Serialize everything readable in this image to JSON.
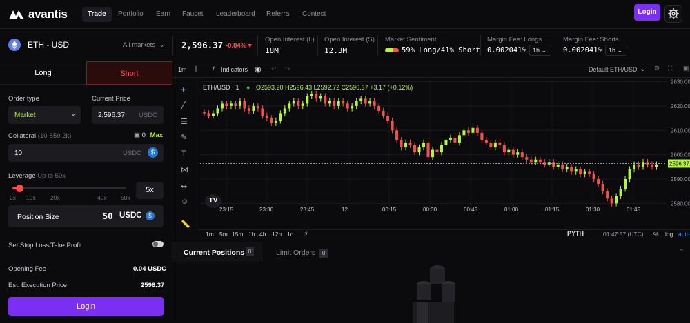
{
  "brand": {
    "name": "avantis"
  },
  "nav": {
    "items": [
      "Trade",
      "Portfolio",
      "Earn",
      "Faucet",
      "Leaderboard",
      "Referral",
      "Contest"
    ],
    "active": "Trade",
    "login_label": "Login"
  },
  "market": {
    "pair": "ETH - USD",
    "all_markets": "All markets",
    "price": "2,596.37",
    "change": "-0.84%",
    "open_interest_long_label": "Open Interest (L)",
    "open_interest_long": "18M",
    "open_interest_short_label": "Open Interest (S)",
    "open_interest_short": "12.3M",
    "sentiment_label": "Market Sentiment",
    "sentiment_value": "59% Long/41% Short",
    "sentiment_long_fraction": 0.59,
    "margin_long_label": "Margin Fee: Longs",
    "margin_long": "0.002041%",
    "margin_long_period": "1h",
    "margin_short_label": "Margin Fee: Shorts",
    "margin_short": "0.002041%",
    "margin_short_period": "1h"
  },
  "order": {
    "tab_long": "Long",
    "tab_short": "Short",
    "order_type_label": "Order type",
    "order_type_value": "Market",
    "current_price_label": "Current Price",
    "current_price_value": "2,596.37",
    "current_price_unit": "USDC",
    "collateral_label": "Collateral",
    "collateral_range": "(10-859.2k)",
    "wallet_balance": "0",
    "max_label": "Max",
    "collateral_value": "10",
    "collateral_unit": "USDC",
    "leverage_label": "Leverage",
    "leverage_hint": "Up to 50x",
    "leverage_value": "5x",
    "leverage_level": 5,
    "leverage_ticks": [
      "2x",
      "10x",
      "20x",
      "40x",
      "50x"
    ],
    "position_size_label": "Position Size",
    "position_size_value": "50",
    "position_size_unit": "USDC",
    "sltp_label": "Set Stop Loss/Take Profit",
    "opening_fee_label": "Opening Fee",
    "opening_fee_value": "0.04 USDC",
    "exec_price_label": "Est. Execution Price",
    "exec_price_value": "2596.37",
    "login_label": "Login"
  },
  "chart_toolbar": {
    "interval": "1m",
    "indicators_label": "Indicators",
    "layout_label": "Default ETH/USD"
  },
  "chart_data": {
    "type": "candlestick",
    "symbol": "ETH/USD · 1",
    "ohlc_labels": {
      "O": "2593.20",
      "H": "2596.43",
      "L": "2592.72",
      "C": "2596.37",
      "chg": "+3.17 (+0.12%)"
    },
    "y_ticks": [
      2580,
      2590,
      2600,
      2610,
      2620,
      2630
    ],
    "ylim": [
      2577,
      2631
    ],
    "x_ticks": [
      "23:15",
      "23:30",
      "23:45",
      "12",
      "00:15",
      "00:30",
      "00:45",
      "01:00",
      "01:15",
      "01:30",
      "01:45"
    ],
    "last_price_label": "2596.37",
    "closes": [
      2617,
      2616,
      2617,
      2619,
      2621,
      2620,
      2621,
      2620,
      2622,
      2619,
      2618,
      2620,
      2619,
      2616,
      2615,
      2613,
      2614,
      2617,
      2619,
      2621,
      2622,
      2620,
      2621,
      2624,
      2625,
      2623,
      2624,
      2621,
      2622,
      2620,
      2622,
      2621,
      2619,
      2620,
      2622,
      2623,
      2621,
      2622,
      2620,
      2618,
      2616,
      2614,
      2610,
      2606,
      2603,
      2605,
      2604,
      2601,
      2603,
      2605,
      2599,
      2602,
      2601,
      2604,
      2606,
      2607,
      2605,
      2608,
      2610,
      2609,
      2611,
      2609,
      2606,
      2605,
      2603,
      2605,
      2604,
      2601,
      2602,
      2600,
      2601,
      2599,
      2598,
      2597,
      2598,
      2597,
      2596,
      2597,
      2595,
      2596,
      2594,
      2595,
      2593,
      2594,
      2592,
      2593,
      2592,
      2590,
      2588,
      2585,
      2582,
      2580,
      2583,
      2586,
      2590,
      2594,
      2596,
      2595,
      2597,
      2596,
      2595,
      2596
    ],
    "times": [
      "01:47:57 (UTC)"
    ],
    "bottom_intervals": [
      "1m",
      "5m",
      "15m",
      "1h",
      "4h",
      "12h",
      "1d"
    ],
    "scale_opts": [
      "%",
      "log",
      "auto"
    ],
    "attribution": "PYTH"
  },
  "bottom": {
    "tab_positions": "Current Positions",
    "positions_count": "0",
    "tab_limit": "Limit Orders",
    "limit_count": "0"
  },
  "colors": {
    "up": "#b6f24a",
    "down": "#ef5350",
    "accent": "#7b2ff2",
    "short": "#ff4d4f"
  }
}
